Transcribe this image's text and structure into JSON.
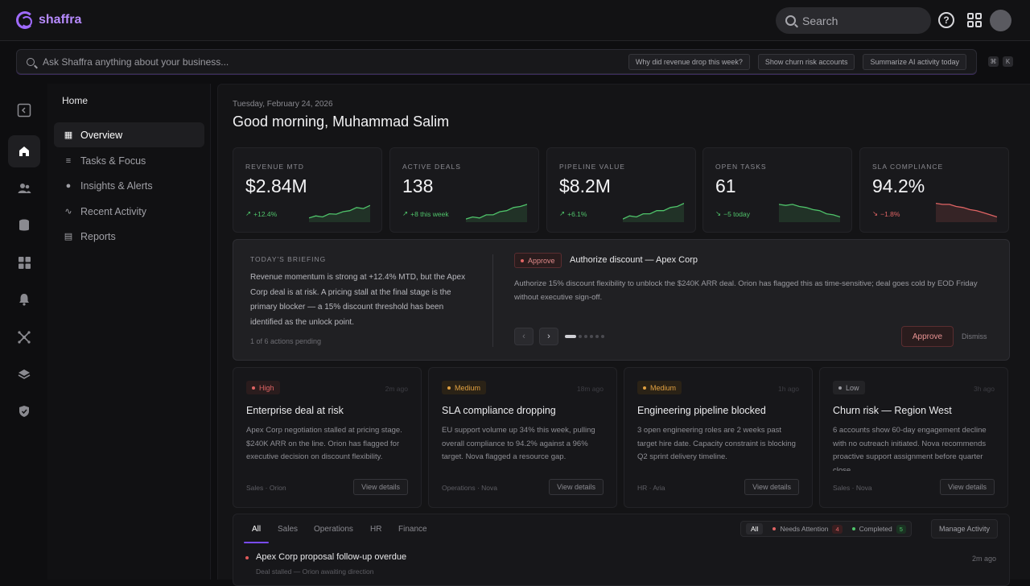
{
  "brand": {
    "name": "shaffra",
    "accent": "#a06bff"
  },
  "topbar": {
    "search_placeholder": "Search",
    "help_label": "?"
  },
  "ask": {
    "placeholder": "Ask Shaffra anything about your business...",
    "suggestions": [
      "Why did revenue drop this week?",
      "Show churn risk accounts",
      "Summarize AI activity today"
    ],
    "shortcut": [
      "⌘",
      "K"
    ]
  },
  "rail": [
    "sidebar-collapse-icon",
    "home-icon",
    "users-icon",
    "database-icon",
    "grid-icon",
    "bell-icon",
    "network-icon",
    "layers-icon",
    "shield-icon"
  ],
  "sidenav": {
    "section": "Home",
    "items": [
      {
        "label": "Overview",
        "icon": "▦"
      },
      {
        "label": "Tasks & Focus",
        "icon": "≡"
      },
      {
        "label": "Insights & Alerts",
        "icon": "●"
      },
      {
        "label": "Recent Activity",
        "icon": "∿"
      },
      {
        "label": "Reports",
        "icon": "▤"
      }
    ]
  },
  "header": {
    "date": "Tuesday, February 24, 2026",
    "greeting": "Good morning, Muhammad Salim"
  },
  "kpis": [
    {
      "label": "REVENUE MTD",
      "value": "$2.84M",
      "delta": "+12.4%",
      "trend": "up",
      "color": "#4fc36a",
      "spark": [
        2,
        3,
        2.5,
        4,
        3.8,
        5,
        5.5,
        7,
        6.5,
        8
      ]
    },
    {
      "label": "ACTIVE DEALS",
      "value": "138",
      "delta": "+8 this week",
      "trend": "up",
      "color": "#4fc36a",
      "spark": [
        1.5,
        2.5,
        2,
        3.5,
        3.5,
        5,
        5.5,
        7,
        7.5,
        8.5
      ]
    },
    {
      "label": "PIPELINE VALUE",
      "value": "$8.2M",
      "delta": "+6.1%",
      "trend": "up",
      "color": "#4fc36a",
      "spark": [
        1.5,
        3,
        2.5,
        4,
        4,
        5.5,
        5.5,
        7,
        7.5,
        9
      ]
    },
    {
      "label": "OPEN TASKS",
      "value": "61",
      "delta": "−5 today",
      "trend": "down",
      "color": "#4fc36a",
      "spark": [
        8.5,
        8,
        8.5,
        7.5,
        7,
        6,
        5.5,
        4,
        3.5,
        2.5
      ]
    },
    {
      "label": "SLA COMPLIANCE",
      "value": "94.2%",
      "delta": "−1.8%",
      "trend": "down",
      "color": "#e06464",
      "spark": [
        9,
        8.5,
        8.5,
        7.5,
        7,
        6,
        5.5,
        4.5,
        3.5,
        2.5
      ]
    }
  ],
  "briefing": {
    "label": "TODAY'S BRIEFING",
    "text": "Revenue momentum is strong at +12.4% MTD, but the Apex Corp deal is at risk. A pricing stall at the final stage is the primary blocker — a 15% discount threshold has been identified as the unlock point.",
    "pending": "1 of 6 actions pending",
    "action": {
      "tag": "Approve",
      "title": "Authorize discount — Apex Corp",
      "description": "Authorize 15% discount flexibility to unblock the $240K ARR deal. Orion has flagged this as time-sensitive; deal goes cold by EOD Friday without executive sign-off.",
      "approve_label": "Approve",
      "dismiss_label": "Dismiss"
    }
  },
  "alerts": [
    {
      "severity": "High",
      "sev_color": "#e06464",
      "sev_bg": "#2a1c1d",
      "ago": "2m ago",
      "title": "Enterprise deal at risk",
      "body": "Apex Corp negotiation stalled at pricing stage. $240K ARR on the line. Orion has flagged for executive decision on discount flexibility.",
      "meta": "Sales · Orion",
      "action": "View details"
    },
    {
      "severity": "Medium",
      "sev_color": "#e0a040",
      "sev_bg": "#2a2216",
      "ago": "18m ago",
      "title": "SLA compliance dropping",
      "body": "EU support volume up 34% this week, pulling overall compliance to 94.2% against a 96% target. Nova flagged a resource gap.",
      "meta": "Operations · Nova",
      "action": "View details"
    },
    {
      "severity": "Medium",
      "sev_color": "#e0a040",
      "sev_bg": "#2a2216",
      "ago": "1h ago",
      "title": "Engineering pipeline blocked",
      "body": "3 open engineering roles are 2 weeks past target hire date. Capacity constraint is blocking Q2 sprint delivery timeline.",
      "meta": "HR · Aria",
      "action": "View details"
    },
    {
      "severity": "Low",
      "sev_color": "#9a9aa0",
      "sev_bg": "#232326",
      "ago": "3h ago",
      "title": "Churn risk — Region West",
      "body": "6 accounts show 60-day engagement decline with no outreach initiated. Nova recommends proactive support assignment before quarter close.",
      "meta": "Sales · Nova",
      "action": "View details"
    }
  ],
  "activity": {
    "tabs": [
      "All",
      "Sales",
      "Operations",
      "HR",
      "Finance"
    ],
    "filters": {
      "all": "All",
      "needs_attention": "Needs Attention",
      "needs_attention_count": "4",
      "completed": "Completed",
      "completed_count": "5"
    },
    "manage_label": "Manage Activity",
    "rows": [
      {
        "title": "Apex Corp proposal follow-up overdue",
        "sub": "Deal stalled — Orion awaiting direction",
        "time": "2m ago"
      }
    ]
  }
}
